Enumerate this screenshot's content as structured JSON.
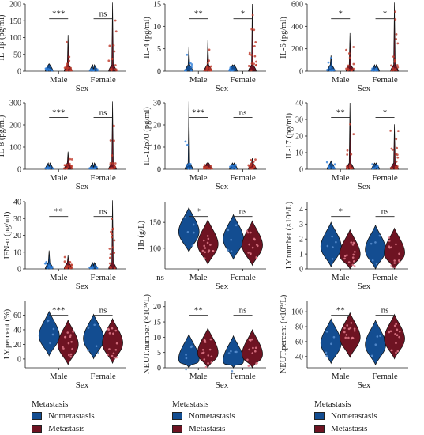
{
  "colors": {
    "nonmetastasis": "#134d91",
    "metastasis": "#6e1322"
  },
  "legend": {
    "title": "Metastasis",
    "items": [
      "Nometastasis",
      "Metastasis"
    ]
  },
  "chart_data": [
    {
      "type": "violin",
      "xlabel": "Sex",
      "ylabel": "IL-1β (pg/ml)",
      "ylim": [
        0,
        200
      ],
      "yticks": [
        0,
        50,
        100,
        150,
        200
      ],
      "categories": [
        "Male",
        "Female"
      ],
      "series": [
        {
          "name": "Nometastasis",
          "max": [
            22,
            4
          ]
        },
        {
          "name": "Metastasis",
          "max": [
            108,
            210
          ]
        }
      ],
      "annotations": [
        "***",
        "ns"
      ]
    },
    {
      "type": "violin",
      "xlabel": "Sex",
      "ylabel": "IL-4 (pg/ml)",
      "ylim": [
        0,
        15
      ],
      "yticks": [
        0,
        5,
        10,
        15
      ],
      "categories": [
        "Male",
        "Female"
      ],
      "series": [
        {
          "name": "Nometastasis",
          "max": [
            5.5,
            1.2
          ]
        },
        {
          "name": "Metastasis",
          "max": [
            7,
            15
          ]
        }
      ],
      "annotations": [
        "**",
        "*"
      ]
    },
    {
      "type": "violin",
      "xlabel": "Sex",
      "ylabel": "IL-6 (pg/ml)",
      "ylim": [
        0,
        600
      ],
      "yticks": [
        0,
        200,
        400,
        600
      ],
      "categories": [
        "Male",
        "Female"
      ],
      "series": [
        {
          "name": "Nometastasis",
          "max": [
            140,
            25
          ]
        },
        {
          "name": "Metastasis",
          "max": [
            340,
            660
          ]
        }
      ],
      "annotations": [
        "*",
        "*"
      ]
    },
    {
      "type": "violin",
      "xlabel": "Sex",
      "ylabel": "IL-8 (pg/ml)",
      "ylim": [
        0,
        300
      ],
      "yticks": [
        0,
        100,
        200,
        300
      ],
      "categories": [
        "Male",
        "Female"
      ],
      "series": [
        {
          "name": "Nometastasis",
          "max": [
            10,
            8
          ]
        },
        {
          "name": "Metastasis",
          "max": [
            80,
            310
          ]
        }
      ],
      "annotations": [
        "***",
        "ns"
      ]
    },
    {
      "type": "violin",
      "xlabel": "Sex",
      "ylabel": "IL-12p70 (pg/ml)",
      "ylim": [
        0,
        30
      ],
      "yticks": [
        0,
        10,
        20,
        30
      ],
      "categories": [
        "Male",
        "Female"
      ],
      "series": [
        {
          "name": "Nometastasis",
          "max": [
            33,
            2
          ]
        },
        {
          "name": "Metastasis",
          "max": [
            3,
            5
          ]
        }
      ],
      "annotations": [
        "***",
        "ns"
      ]
    },
    {
      "type": "violin",
      "xlabel": "Sex",
      "ylabel": "IL-17 (pg/ml)",
      "ylim": [
        0,
        40
      ],
      "yticks": [
        0,
        10,
        20,
        30,
        40
      ],
      "categories": [
        "Male",
        "Female"
      ],
      "series": [
        {
          "name": "Nometastasis",
          "max": [
            5,
            3
          ]
        },
        {
          "name": "Metastasis",
          "max": [
            40,
            27
          ]
        }
      ],
      "annotations": [
        "**",
        "*"
      ]
    },
    {
      "type": "violin",
      "xlabel": "Sex",
      "ylabel": "IFN-α (pg/ml)",
      "ylim": [
        0,
        40
      ],
      "yticks": [
        0,
        10,
        20,
        30,
        40
      ],
      "categories": [
        "Male",
        "Female"
      ],
      "series": [
        {
          "name": "Nometastasis",
          "max": [
            11,
            2
          ]
        },
        {
          "name": "Metastasis",
          "max": [
            8,
            42
          ]
        }
      ],
      "annotations": [
        "**",
        "ns"
      ]
    },
    {
      "type": "violin",
      "xlabel": "Sex",
      "ylabel": "Hb (g/L)",
      "ylim": [
        60,
        190
      ],
      "yticks": [
        100,
        150
      ],
      "categories": [
        "Male",
        "Female"
      ],
      "series": [
        {
          "name": "Nometastasis",
          "median": [
            132,
            118
          ]
        },
        {
          "name": "Metastasis",
          "median": [
            108,
            106
          ]
        }
      ],
      "annotations": [
        "*",
        "ns"
      ],
      "extra_label": "ns"
    },
    {
      "type": "violin",
      "xlabel": "Sex",
      "ylabel": "LY.number (×10⁹/L)",
      "ylim": [
        0,
        4.5
      ],
      "yticks": [
        0,
        1,
        2,
        3,
        4
      ],
      "categories": [
        "Male",
        "Female"
      ],
      "series": [
        {
          "name": "Nometastasis",
          "median": [
            1.5,
            1.3
          ]
        },
        {
          "name": "Metastasis",
          "median": [
            1.0,
            1.1
          ]
        }
      ],
      "annotations": [
        "*",
        "ns"
      ]
    },
    {
      "type": "violin",
      "xlabel": "Sex",
      "ylabel": "LY.percent (%)",
      "ylim": [
        -12,
        80
      ],
      "yticks": [
        0,
        20,
        40,
        60
      ],
      "categories": [
        "Male",
        "Female"
      ],
      "series": [
        {
          "name": "Nometastasis",
          "median": [
            32,
            28
          ]
        },
        {
          "name": "Metastasis",
          "median": [
            20,
            22
          ]
        }
      ],
      "annotations": [
        "***",
        "ns"
      ]
    },
    {
      "type": "violin",
      "xlabel": "Sex",
      "ylabel": "NEUT.number (×10⁹/L)",
      "ylim": [
        0,
        22
      ],
      "yticks": [
        0,
        5,
        10,
        15,
        20
      ],
      "categories": [
        "Male",
        "Female"
      ],
      "series": [
        {
          "name": "Nometastasis",
          "median": [
            3,
            2.5
          ]
        },
        {
          "name": "Metastasis",
          "median": [
            5,
            4.5
          ]
        }
      ],
      "annotations": [
        "**",
        "ns"
      ]
    },
    {
      "type": "violin",
      "xlabel": "Sex",
      "ylabel": "NEUT.percent (×10⁹/L)",
      "ylim": [
        25,
        115
      ],
      "yticks": [
        40,
        60,
        80,
        100
      ],
      "categories": [
        "Male",
        "Female"
      ],
      "series": [
        {
          "name": "Nometastasis",
          "median": [
            58,
            56
          ]
        },
        {
          "name": "Metastasis",
          "median": [
            66,
            64
          ]
        }
      ],
      "annotations": [
        "**",
        "ns"
      ]
    }
  ]
}
